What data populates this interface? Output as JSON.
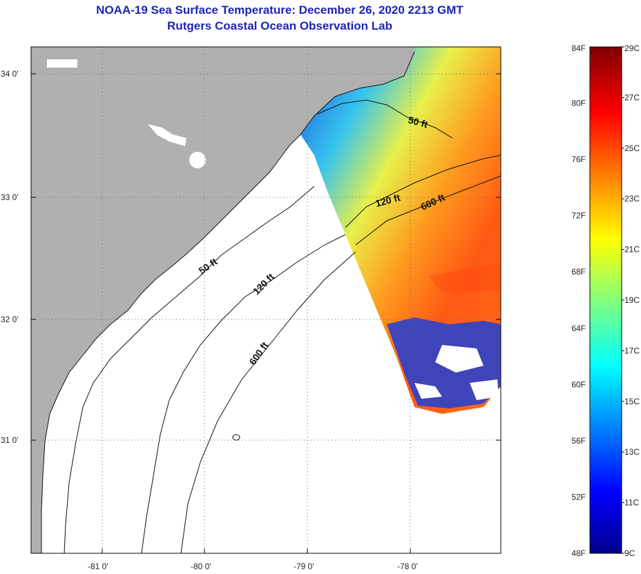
{
  "title": "NOAA-19 Sea Surface Temperature:  December 26, 2020 2213 GMT",
  "subtitle": "Rutgers Coastal Ocean Observation Lab",
  "map": {
    "lat_ticks": [
      "34 0'",
      "33 0'",
      "32 0'",
      "31 0'"
    ],
    "lon_ticks": [
      "-81 0'",
      "-80 0'",
      "-79 0'",
      "-78 0'"
    ],
    "contour_labels": [
      "50 ft",
      "120 ft",
      "600 ft",
      "50 ft",
      "120 ft",
      "600 ft"
    ],
    "colors": {
      "land": "#b0b0b0",
      "ocean_nodata": "#ffffff",
      "grid": "#666666"
    }
  },
  "colorbar": {
    "fahrenheit": [
      "84F",
      "80F",
      "76F",
      "72F",
      "68F",
      "64F",
      "60F",
      "56F",
      "52F",
      "48F"
    ],
    "celsius": [
      "29C",
      "27C",
      "25C",
      "23C",
      "21C",
      "19C",
      "17C",
      "15C",
      "13C",
      "11C",
      "9C"
    ],
    "range_f": [
      48,
      84
    ],
    "range_c": [
      9,
      29
    ]
  }
}
